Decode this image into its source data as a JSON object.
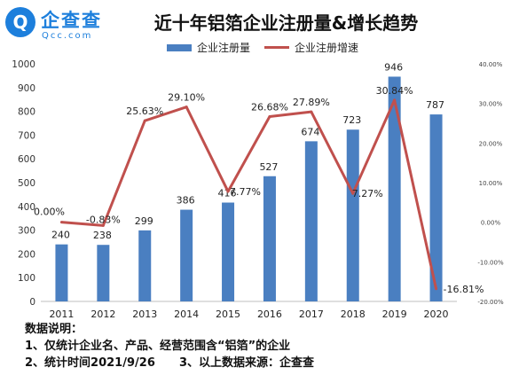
{
  "logo": {
    "glyph": "Q",
    "name_cn": "企查查",
    "name_en": "Qcc.com"
  },
  "colors": {
    "bar": "#4a7fc1",
    "line": "#c0504d",
    "brand": "#1d7fdc"
  },
  "chart_data": {
    "type": "bar",
    "title": "近十年铝箔企业注册量&增长趋势",
    "categories": [
      "2011",
      "2012",
      "2013",
      "2014",
      "2015",
      "2016",
      "2017",
      "2018",
      "2019",
      "2020"
    ],
    "series": [
      {
        "name": "企业注册量",
        "type": "bar",
        "axis": "left",
        "values": [
          240,
          238,
          299,
          386,
          416,
          527,
          674,
          723,
          946,
          787
        ]
      },
      {
        "name": "企业注册增速",
        "type": "line",
        "axis": "right",
        "unit": "%",
        "values": [
          0.0,
          -0.83,
          25.63,
          29.1,
          7.77,
          26.68,
          27.89,
          7.27,
          30.84,
          -16.81
        ],
        "labels": [
          "0.00%",
          "-0.83%",
          "25.63%",
          "29.10%",
          "7.77%",
          "26.68%",
          "27.89%",
          "7.27%",
          "30.84%",
          "-16.81%"
        ]
      }
    ],
    "ylim": [
      0,
      1000
    ],
    "yticks": [
      "0",
      "100",
      "200",
      "300",
      "400",
      "500",
      "600",
      "700",
      "800",
      "900",
      "1000"
    ],
    "y2lim": [
      -20,
      40
    ],
    "y2ticks": [
      "-20.00%",
      "-10.00%",
      "0.00%",
      "10.00%",
      "20.00%",
      "30.00%",
      "40.00%"
    ],
    "legend_position": "top-center",
    "grid": false
  },
  "notes": {
    "heading": "数据说明：",
    "line1": "1、仅统计企业名、产品、经营范围含“铝箔”的企业",
    "line2": "2、统计时间2021/9/26      3、以上数据来源：企查查"
  }
}
